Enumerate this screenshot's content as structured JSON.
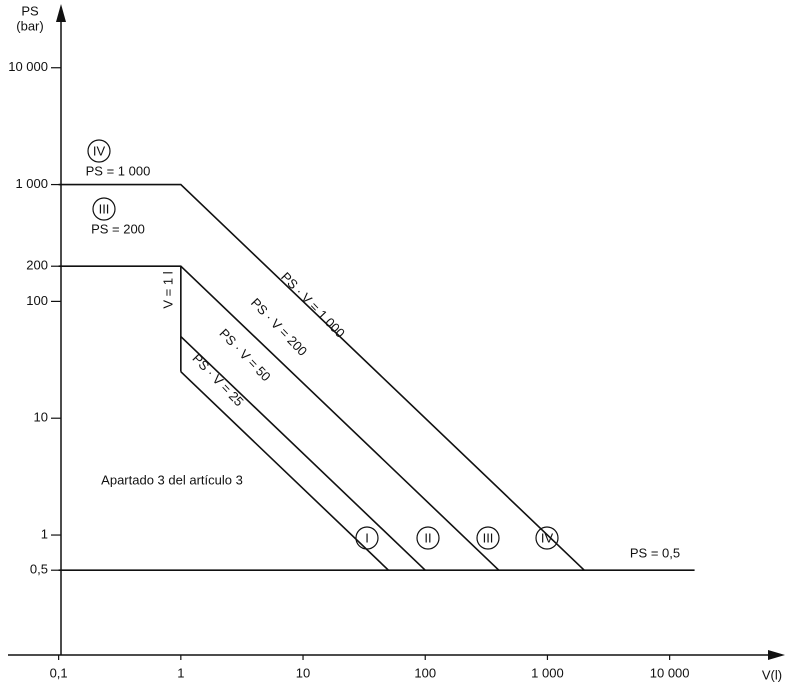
{
  "chart_data": {
    "type": "line",
    "x_label": "V(l)",
    "y_label": "PS",
    "y_unit": "(bar)",
    "x_scale": "log",
    "y_scale": "log",
    "color": "#111111",
    "xlim": [
      0.04,
      80000
    ],
    "ylim": [
      0.094,
      30000
    ],
    "xticks": [
      {
        "value": 0.1,
        "label": "0,1"
      },
      1,
      10,
      100,
      {
        "value": 1000,
        "label": "1 000"
      },
      {
        "value": 10000,
        "label": "10 000"
      }
    ],
    "yticks": [
      {
        "value": 0.5,
        "label": "0,5"
      },
      1,
      10,
      100,
      200,
      {
        "value": 1000,
        "label": "1 000"
      },
      {
        "value": 10000,
        "label": "10 000"
      }
    ],
    "series": [
      {
        "x": [
          0.1,
          1,
          2000
        ],
        "values": [
          1000,
          1000,
          0.5
        ]
      },
      {
        "x": [
          0.1,
          1,
          400
        ],
        "values": [
          200,
          200,
          0.5
        ]
      },
      {
        "x": [
          1,
          1
        ],
        "values": [
          200,
          25
        ]
      },
      {
        "x": [
          1,
          100
        ],
        "values": [
          50,
          0.5
        ]
      },
      {
        "x": [
          1,
          50
        ],
        "values": [
          25,
          0.5
        ]
      },
      {
        "x": [
          0.1,
          16000
        ],
        "values": [
          0.5,
          0.5
        ]
      }
    ],
    "annotations": [
      "IV",
      "PS = 1 000",
      "III",
      "PS = 200",
      "PS · V = 1 000",
      "PS · V = 200",
      "PS · V = 50",
      "PS · V = 25",
      "V = 1 l",
      "Apartado 3 del artículo 3",
      "I",
      "II",
      "III",
      "IV",
      "PS = 0,5"
    ]
  }
}
